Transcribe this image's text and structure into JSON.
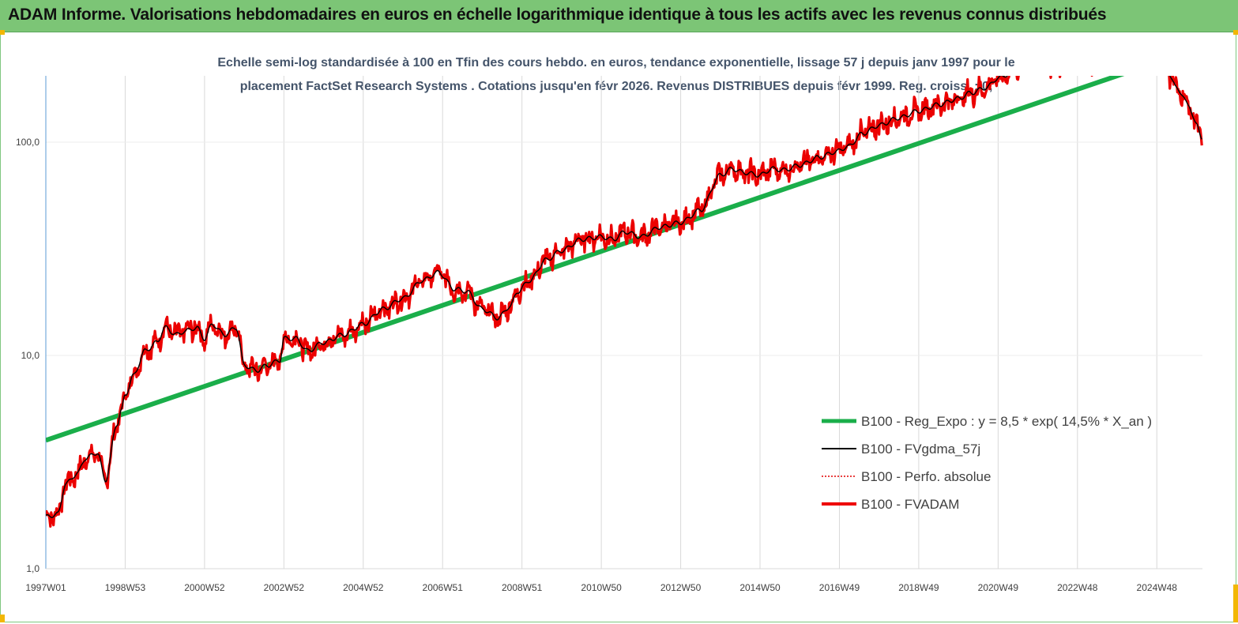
{
  "header": {
    "title": "ADAM Informe. Valorisations hebdomadaires en euros en échelle logarithmique identique à tous les actifs avec les revenus connus distribués"
  },
  "colors": {
    "header_bg": "#7cc576",
    "regression": "#1aae4a",
    "smoothed": "#000000",
    "perfo": "#e00000",
    "fvadam": "#ee0000",
    "grid": "#d9d9d9"
  },
  "chart_data": {
    "type": "line",
    "subtitle_line1": "Echelle semi-log standardisée à 100 en Tfin des cours hebdo. en euros, tendance exponentielle, lissage 57 j depuis janv 1997 pour le",
    "subtitle_line2": "placement FactSet Research Systems . Cotations jusqu'en févr 2026. Revenus DISTRIBUES depuis févr 1999. Reg. croiss. : 0,",
    "y_scale": "log",
    "ylim": [
      1,
      200
    ],
    "y_ticks": [
      1,
      10,
      100
    ],
    "y_tick_labels": [
      "1,0",
      "10,0",
      "100,0"
    ],
    "xlim": [
      1997.0,
      2026.15
    ],
    "x_ticks": [
      1997.0,
      1999.0,
      2001.0,
      2003.0,
      2005.0,
      2007.0,
      2009.0,
      2011.0,
      2013.0,
      2015.0,
      2017.0,
      2019.0,
      2021.0,
      2023.0,
      2025.0
    ],
    "x_tick_labels": [
      "1997W01",
      "1998W53",
      "2000W52",
      "2002W52",
      "2004W52",
      "2006W51",
      "2008W51",
      "2010W50",
      "2012W50",
      "2014W50",
      "2016W49",
      "2018W49",
      "2020W49",
      "2022W48",
      "2024W48"
    ],
    "grid": "vertical",
    "legend_position": "bottom-right",
    "series": [
      {
        "name": "B100 - Reg_Expo : y = 8,5 * exp( 14,5% *  X_an )",
        "style": "thick-green",
        "x": [
          1997.0,
          2026.15
        ],
        "y": [
          4.0,
          280
        ]
      },
      {
        "name": "B100 - FVgdma_57j",
        "style": "thin-black"
      },
      {
        "name": "B100 - Perfo. absolue",
        "style": "dotted-red"
      },
      {
        "name": "B100 - FVADAM",
        "style": "thick-red"
      }
    ],
    "price": {
      "x": [
        1997.0,
        1997.3,
        1997.5,
        1997.8,
        1998.0,
        1998.3,
        1998.5,
        1998.8,
        1998.9,
        1999.0,
        1999.2,
        1999.5,
        1999.8,
        2000.0,
        2000.3,
        2000.5,
        2000.8,
        2001.0,
        2001.2,
        2001.5,
        2001.8,
        2002.0,
        2002.3,
        2002.6,
        2002.9,
        2003.0,
        2003.3,
        2003.6,
        2004.0,
        2004.5,
        2005.0,
        2005.5,
        2006.0,
        2006.5,
        2006.9,
        2007.3,
        2007.6,
        2008.0,
        2008.4,
        2008.7,
        2008.9,
        2009.2,
        2009.6,
        2010.0,
        2010.5,
        2011.0,
        2011.3,
        2011.6,
        2012.0,
        2012.5,
        2013.0,
        2013.5,
        2014.0,
        2014.3,
        2014.6,
        2015.0,
        2015.3,
        2015.6,
        2016.0,
        2016.5,
        2016.9,
        2017.2,
        2017.6,
        2018.0,
        2018.5,
        2019.0,
        2019.5,
        2020.0,
        2020.3,
        2020.7,
        2021.0,
        2021.5,
        2022.0,
        2022.4,
        2022.7,
        2023.0,
        2023.5,
        2024.0,
        2024.5,
        2024.9,
        2025.2,
        2025.5,
        2025.8,
        2026.0,
        2026.15
      ],
      "y": [
        1.75,
        1.8,
        2.5,
        2.8,
        3.3,
        3.5,
        2.6,
        4.8,
        5.5,
        6.5,
        8.0,
        10.5,
        11.5,
        13.5,
        12.5,
        13.0,
        13.5,
        12.0,
        14.0,
        12.5,
        13.5,
        9.0,
        8.5,
        9.0,
        9.5,
        12.0,
        12.0,
        10.5,
        11.5,
        12.5,
        14.0,
        16.5,
        18.5,
        22.5,
        24.5,
        20.5,
        20.0,
        16.5,
        15.0,
        17.0,
        20.0,
        22.5,
        28.0,
        31.0,
        35.0,
        36.0,
        35.0,
        38.0,
        36.0,
        40.0,
        42.0,
        48.0,
        70.0,
        75.0,
        72.0,
        70.0,
        75.0,
        74.0,
        78.0,
        85.0,
        90.0,
        95.0,
        110.0,
        120.0,
        130.0,
        140.0,
        150.0,
        160.0,
        170.0,
        180.0,
        200.0,
        220.0,
        240.0,
        230.0,
        240.0,
        250.0,
        240.0,
        260.0,
        250.0,
        240.0,
        230.0,
        180.0,
        150.0,
        120.0,
        105.0
      ]
    }
  }
}
